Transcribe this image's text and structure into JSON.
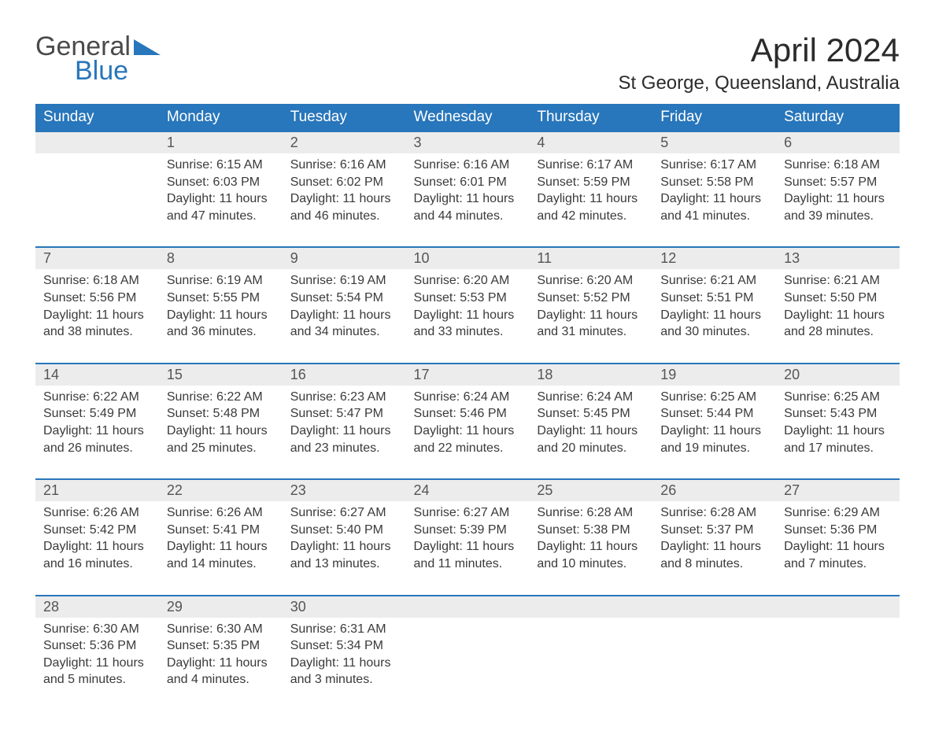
{
  "logo": {
    "line1": "General",
    "line2": "Blue"
  },
  "title": "April 2024",
  "location": "St George, Queensland, Australia",
  "colors": {
    "header_bg": "#2876bb",
    "header_text": "#ffffff",
    "date_bg": "#ececec",
    "date_border": "#2876bb",
    "body_text": "#3a3a3a",
    "logo_blue": "#2876bb"
  },
  "day_headers": [
    "Sunday",
    "Monday",
    "Tuesday",
    "Wednesday",
    "Thursday",
    "Friday",
    "Saturday"
  ],
  "weeks": [
    [
      null,
      {
        "date": "1",
        "sunrise": "Sunrise: 6:15 AM",
        "sunset": "Sunset: 6:03 PM",
        "daylight": "Daylight: 11 hours and 47 minutes."
      },
      {
        "date": "2",
        "sunrise": "Sunrise: 6:16 AM",
        "sunset": "Sunset: 6:02 PM",
        "daylight": "Daylight: 11 hours and 46 minutes."
      },
      {
        "date": "3",
        "sunrise": "Sunrise: 6:16 AM",
        "sunset": "Sunset: 6:01 PM",
        "daylight": "Daylight: 11 hours and 44 minutes."
      },
      {
        "date": "4",
        "sunrise": "Sunrise: 6:17 AM",
        "sunset": "Sunset: 5:59 PM",
        "daylight": "Daylight: 11 hours and 42 minutes."
      },
      {
        "date": "5",
        "sunrise": "Sunrise: 6:17 AM",
        "sunset": "Sunset: 5:58 PM",
        "daylight": "Daylight: 11 hours and 41 minutes."
      },
      {
        "date": "6",
        "sunrise": "Sunrise: 6:18 AM",
        "sunset": "Sunset: 5:57 PM",
        "daylight": "Daylight: 11 hours and 39 minutes."
      }
    ],
    [
      {
        "date": "7",
        "sunrise": "Sunrise: 6:18 AM",
        "sunset": "Sunset: 5:56 PM",
        "daylight": "Daylight: 11 hours and 38 minutes."
      },
      {
        "date": "8",
        "sunrise": "Sunrise: 6:19 AM",
        "sunset": "Sunset: 5:55 PM",
        "daylight": "Daylight: 11 hours and 36 minutes."
      },
      {
        "date": "9",
        "sunrise": "Sunrise: 6:19 AM",
        "sunset": "Sunset: 5:54 PM",
        "daylight": "Daylight: 11 hours and 34 minutes."
      },
      {
        "date": "10",
        "sunrise": "Sunrise: 6:20 AM",
        "sunset": "Sunset: 5:53 PM",
        "daylight": "Daylight: 11 hours and 33 minutes."
      },
      {
        "date": "11",
        "sunrise": "Sunrise: 6:20 AM",
        "sunset": "Sunset: 5:52 PM",
        "daylight": "Daylight: 11 hours and 31 minutes."
      },
      {
        "date": "12",
        "sunrise": "Sunrise: 6:21 AM",
        "sunset": "Sunset: 5:51 PM",
        "daylight": "Daylight: 11 hours and 30 minutes."
      },
      {
        "date": "13",
        "sunrise": "Sunrise: 6:21 AM",
        "sunset": "Sunset: 5:50 PM",
        "daylight": "Daylight: 11 hours and 28 minutes."
      }
    ],
    [
      {
        "date": "14",
        "sunrise": "Sunrise: 6:22 AM",
        "sunset": "Sunset: 5:49 PM",
        "daylight": "Daylight: 11 hours and 26 minutes."
      },
      {
        "date": "15",
        "sunrise": "Sunrise: 6:22 AM",
        "sunset": "Sunset: 5:48 PM",
        "daylight": "Daylight: 11 hours and 25 minutes."
      },
      {
        "date": "16",
        "sunrise": "Sunrise: 6:23 AM",
        "sunset": "Sunset: 5:47 PM",
        "daylight": "Daylight: 11 hours and 23 minutes."
      },
      {
        "date": "17",
        "sunrise": "Sunrise: 6:24 AM",
        "sunset": "Sunset: 5:46 PM",
        "daylight": "Daylight: 11 hours and 22 minutes."
      },
      {
        "date": "18",
        "sunrise": "Sunrise: 6:24 AM",
        "sunset": "Sunset: 5:45 PM",
        "daylight": "Daylight: 11 hours and 20 minutes."
      },
      {
        "date": "19",
        "sunrise": "Sunrise: 6:25 AM",
        "sunset": "Sunset: 5:44 PM",
        "daylight": "Daylight: 11 hours and 19 minutes."
      },
      {
        "date": "20",
        "sunrise": "Sunrise: 6:25 AM",
        "sunset": "Sunset: 5:43 PM",
        "daylight": "Daylight: 11 hours and 17 minutes."
      }
    ],
    [
      {
        "date": "21",
        "sunrise": "Sunrise: 6:26 AM",
        "sunset": "Sunset: 5:42 PM",
        "daylight": "Daylight: 11 hours and 16 minutes."
      },
      {
        "date": "22",
        "sunrise": "Sunrise: 6:26 AM",
        "sunset": "Sunset: 5:41 PM",
        "daylight": "Daylight: 11 hours and 14 minutes."
      },
      {
        "date": "23",
        "sunrise": "Sunrise: 6:27 AM",
        "sunset": "Sunset: 5:40 PM",
        "daylight": "Daylight: 11 hours and 13 minutes."
      },
      {
        "date": "24",
        "sunrise": "Sunrise: 6:27 AM",
        "sunset": "Sunset: 5:39 PM",
        "daylight": "Daylight: 11 hours and 11 minutes."
      },
      {
        "date": "25",
        "sunrise": "Sunrise: 6:28 AM",
        "sunset": "Sunset: 5:38 PM",
        "daylight": "Daylight: 11 hours and 10 minutes."
      },
      {
        "date": "26",
        "sunrise": "Sunrise: 6:28 AM",
        "sunset": "Sunset: 5:37 PM",
        "daylight": "Daylight: 11 hours and 8 minutes."
      },
      {
        "date": "27",
        "sunrise": "Sunrise: 6:29 AM",
        "sunset": "Sunset: 5:36 PM",
        "daylight": "Daylight: 11 hours and 7 minutes."
      }
    ],
    [
      {
        "date": "28",
        "sunrise": "Sunrise: 6:30 AM",
        "sunset": "Sunset: 5:36 PM",
        "daylight": "Daylight: 11 hours and 5 minutes."
      },
      {
        "date": "29",
        "sunrise": "Sunrise: 6:30 AM",
        "sunset": "Sunset: 5:35 PM",
        "daylight": "Daylight: 11 hours and 4 minutes."
      },
      {
        "date": "30",
        "sunrise": "Sunrise: 6:31 AM",
        "sunset": "Sunset: 5:34 PM",
        "daylight": "Daylight: 11 hours and 3 minutes."
      },
      null,
      null,
      null,
      null
    ]
  ]
}
